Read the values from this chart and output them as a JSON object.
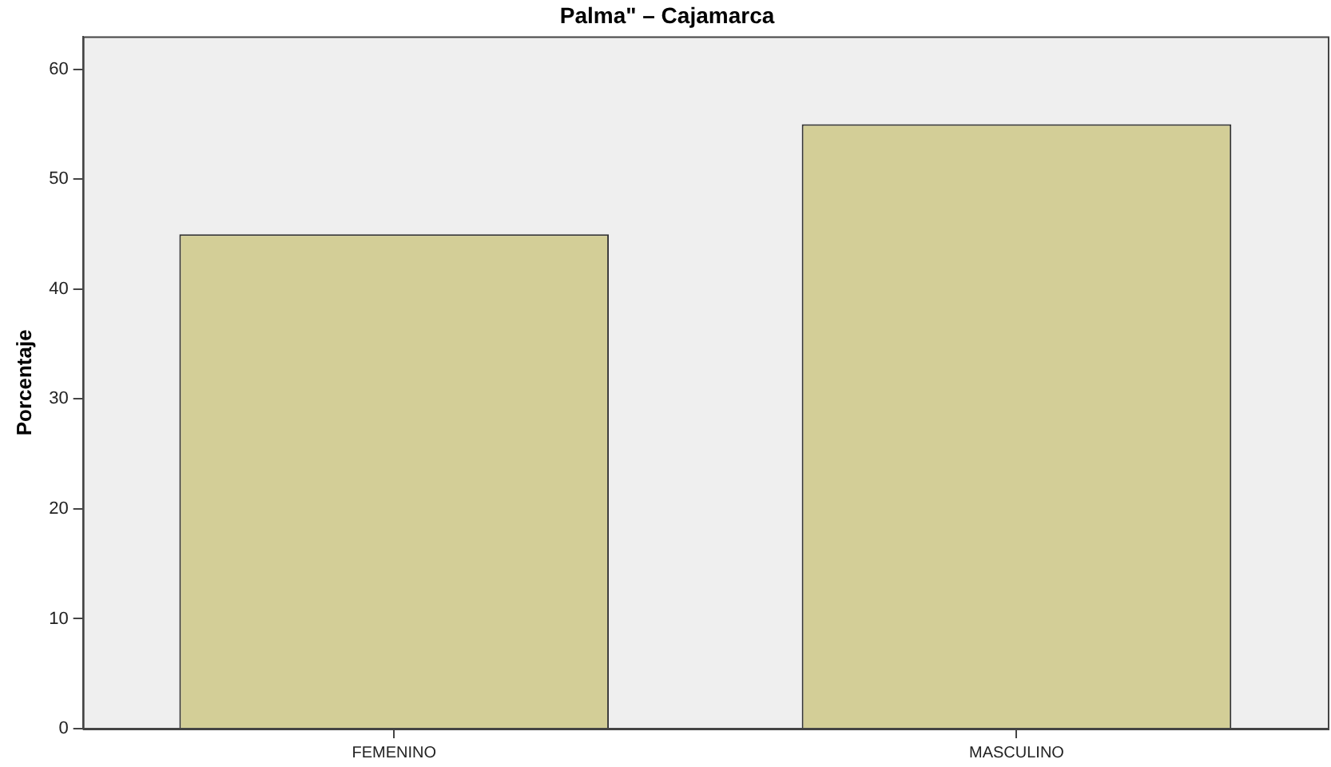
{
  "chart_data": {
    "type": "bar",
    "title": "Palma\" – Cajamarca",
    "ylabel": "Porcentaje",
    "categories": [
      "FEMENINO",
      "MASCULINO"
    ],
    "values": [
      45,
      55
    ],
    "color": "#d3ce97",
    "ylim": [
      0,
      63
    ],
    "yticks": [
      0,
      10,
      20,
      30,
      40,
      50,
      60
    ],
    "grid": false,
    "legend": false
  }
}
